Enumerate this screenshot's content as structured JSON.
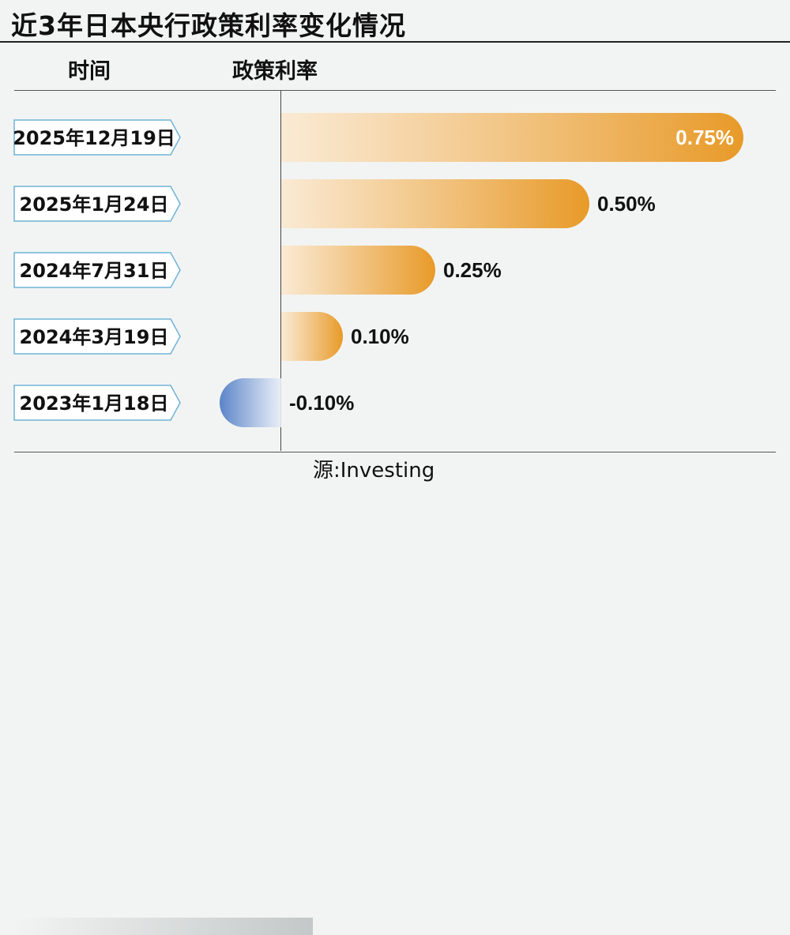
{
  "title": "近3年日本央行政策利率变化情况",
  "header": {
    "time": "时间",
    "rate": "政策利率"
  },
  "source": "源:Investing",
  "colors": {
    "positive": "#e89a28",
    "negative": "#5a84c8",
    "label_border": "#6fb3d6",
    "value_inside": "#ffffff",
    "value_outside": "#111111"
  },
  "chart_data": {
    "type": "bar",
    "orientation": "horizontal",
    "title": "近3年日本央行政策利率变化情况",
    "xlabel": "",
    "ylabel": "",
    "categories": [
      "2025年12月19日",
      "2025年1月24日",
      "2024年7月31日",
      "2024年3月19日",
      "2023年1月18日"
    ],
    "values": [
      0.75,
      0.5,
      0.25,
      0.1,
      -0.1
    ],
    "data_labels": [
      "0.75%",
      "0.50%",
      "0.25%",
      "0.10%",
      "-0.10%"
    ],
    "unit": "%",
    "xlim": [
      -0.1,
      0.75
    ],
    "grid": false,
    "legend": "none"
  }
}
